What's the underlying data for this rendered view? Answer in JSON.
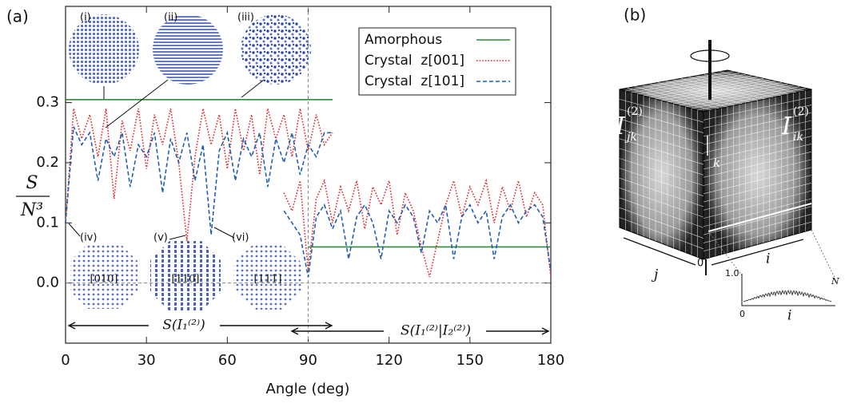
{
  "chart_data": {
    "type": "line",
    "panel_label": "(a)",
    "xlabel": "Angle (deg)",
    "ylabel": {
      "numerator": "S",
      "denominator": "N³"
    },
    "xlim": [
      0,
      180
    ],
    "xticks": [
      0,
      30,
      60,
      90,
      120,
      150,
      180
    ],
    "ylim": [
      -0.1,
      0.46
    ],
    "yticks": [
      {
        "value": 0,
        "label": "0.0"
      },
      0.1,
      0.2,
      0.3
    ],
    "hlines": [
      0
    ],
    "vlines": [
      90
    ],
    "legend": "upper right",
    "series": [
      {
        "name": "Amorphous",
        "color": "#2e8b3a",
        "style": "solid",
        "x": [
          0,
          33,
          66,
          99,
          90,
          90,
          120,
          150,
          180
        ],
        "values": [
          0.305,
          0.305,
          0.305,
          0.305,
          null,
          0.06,
          0.06,
          0.06,
          0.06
        ]
      },
      {
        "name": "Crystal  z[001]",
        "color": "#e0282e",
        "style": "dotted",
        "x": [
          0,
          3,
          6,
          9,
          12,
          15,
          18,
          21,
          24,
          27,
          30,
          33,
          36,
          39,
          42,
          45,
          48,
          51,
          54,
          57,
          60,
          63,
          66,
          69,
          72,
          75,
          78,
          81,
          84,
          87,
          90,
          93,
          96,
          99,
          90,
          81,
          84,
          87,
          90,
          93,
          96,
          99,
          102,
          105,
          108,
          111,
          114,
          117,
          120,
          123,
          126,
          129,
          132,
          135,
          138,
          141,
          144,
          147,
          150,
          153,
          156,
          159,
          162,
          165,
          168,
          171,
          174,
          177,
          180
        ],
        "values": [
          0.1,
          0.29,
          0.24,
          0.28,
          0.21,
          0.29,
          0.14,
          0.27,
          0.22,
          0.29,
          0.19,
          0.28,
          0.23,
          0.29,
          0.2,
          0.07,
          0.21,
          0.29,
          0.23,
          0.28,
          0.19,
          0.29,
          0.22,
          0.28,
          0.18,
          0.29,
          0.24,
          0.28,
          0.21,
          0.29,
          0.22,
          0.28,
          0.23,
          0.25,
          null,
          0.15,
          0.12,
          0.17,
          0.02,
          0.14,
          0.17,
          0.1,
          0.16,
          0.12,
          0.17,
          0.09,
          0.16,
          0.13,
          0.17,
          0.08,
          0.15,
          0.12,
          0.06,
          0.01,
          0.07,
          0.13,
          0.17,
          0.11,
          0.16,
          0.13,
          0.17,
          0.1,
          0.16,
          0.12,
          0.17,
          0.11,
          0.15,
          0.13,
          0.01
        ]
      },
      {
        "name": "Crystal  z[101]",
        "color": "#1f5fb0",
        "style": "dashed",
        "x": [
          0,
          3,
          6,
          9,
          12,
          15,
          18,
          21,
          24,
          27,
          30,
          33,
          36,
          39,
          42,
          45,
          48,
          51,
          54,
          57,
          60,
          63,
          66,
          69,
          72,
          75,
          78,
          81,
          84,
          87,
          90,
          93,
          96,
          99,
          90,
          81,
          84,
          87,
          90,
          93,
          96,
          99,
          102,
          105,
          108,
          111,
          114,
          117,
          120,
          123,
          126,
          129,
          132,
          135,
          138,
          141,
          144,
          147,
          150,
          153,
          156,
          159,
          162,
          165,
          168,
          171,
          174,
          177,
          180
        ],
        "values": [
          0.1,
          0.26,
          0.23,
          0.25,
          0.17,
          0.24,
          0.21,
          0.25,
          0.16,
          0.23,
          0.21,
          0.25,
          0.15,
          0.24,
          0.2,
          0.25,
          0.17,
          0.23,
          0.08,
          0.22,
          0.25,
          0.17,
          0.24,
          0.21,
          0.25,
          0.16,
          0.24,
          0.2,
          0.25,
          0.18,
          0.23,
          0.21,
          0.25,
          0.25,
          null,
          0.12,
          0.1,
          0.08,
          0.01,
          0.11,
          0.13,
          0.09,
          0.12,
          0.04,
          0.11,
          0.13,
          0.1,
          0.04,
          0.12,
          0.1,
          0.13,
          0.11,
          0.05,
          0.12,
          0.1,
          0.13,
          0.04,
          0.11,
          0.13,
          0.1,
          0.12,
          0.04,
          0.11,
          0.13,
          0.1,
          0.12,
          0.13,
          0.11,
          0.02
        ]
      }
    ],
    "insets": [
      {
        "label": "(i)"
      },
      {
        "label": "(ii)"
      },
      {
        "label": "(iii)"
      },
      {
        "label": "(iv)",
        "orientation": "[010]"
      },
      {
        "label": "(v)",
        "orientation": "[110]"
      },
      {
        "label": "(vi)",
        "orientation": "[111̄]"
      }
    ],
    "ranges": [
      {
        "label": "S(I₁⁽²⁾)"
      },
      {
        "label": "S(I₁⁽²⁾|I₂⁽²⁾)"
      }
    ]
  },
  "panel_b": {
    "label": "(b)",
    "face_left": {
      "base": "I",
      "sub": "jk",
      "sup": "(2)"
    },
    "face_right": {
      "base": "I",
      "sub": "ik",
      "sup": "(2)"
    },
    "axis_k": "k",
    "axis_j": "j",
    "axis_i": "i",
    "origin": "0",
    "profile": {
      "ytick": "1.0",
      "xstart": "0",
      "xend": "N",
      "xlabel": "i"
    }
  }
}
